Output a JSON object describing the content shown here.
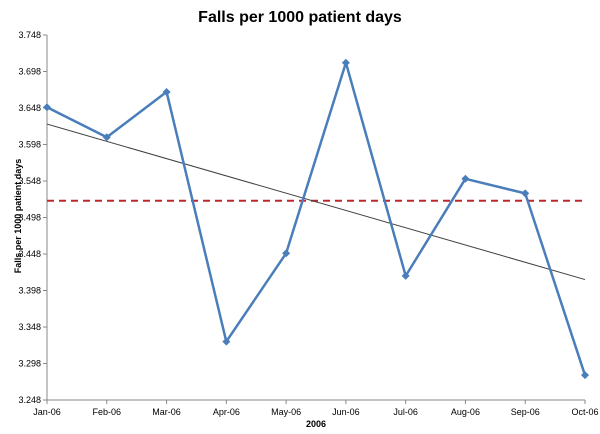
{
  "chart_data": {
    "type": "line",
    "title": "Falls per 1000 patient days",
    "xlabel": "2006",
    "ylabel": "Falls per 1000 patient days",
    "categories": [
      "Jan-06",
      "Feb-06",
      "Mar-06",
      "Apr-06",
      "May-06",
      "Jun-06",
      "Jul-06",
      "Aug-06",
      "Sep-06",
      "Oct-06"
    ],
    "y_ticks": [
      "3.248",
      "3.298",
      "3.348",
      "3.398",
      "3.448",
      "3.498",
      "3.548",
      "3.598",
      "3.648",
      "3.698",
      "3.748"
    ],
    "ylim": [
      3.248,
      3.748
    ],
    "series": [
      {
        "values": [
          3.649,
          3.608,
          3.67,
          3.328,
          3.449,
          3.71,
          3.418,
          3.551,
          3.531,
          3.282
        ],
        "color": "#4a7ebb",
        "marker": "diamond"
      }
    ],
    "reference_line": {
      "value": 3.521,
      "style": "dashed",
      "color": "#c0272d"
    },
    "trendline": {
      "start": 3.626,
      "end": 3.413,
      "color": "#404040"
    },
    "grid": false,
    "legend": "none"
  }
}
